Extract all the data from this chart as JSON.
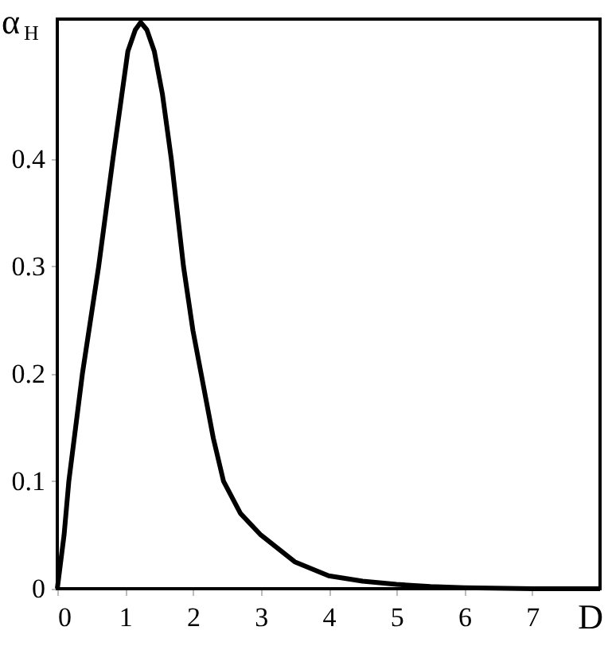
{
  "chart_data": {
    "type": "line",
    "xlabel": "D",
    "ylabel": "α$_{H}$",
    "x": [
      0,
      0.1,
      0.17,
      0.37,
      0.61,
      0.82,
      0.93,
      1.04,
      1.15,
      1.23,
      1.32,
      1.43,
      1.55,
      1.68,
      1.86,
      2.0,
      2.12,
      2.3,
      2.45,
      2.7,
      3.0,
      3.5,
      4.0,
      4.5,
      5.0,
      5.5,
      6.0,
      7.0,
      8.0
    ],
    "series": [
      {
        "color": "#000000",
        "values": [
          0,
          0.05,
          0.1,
          0.2,
          0.3,
          0.4,
          0.45,
          0.5,
          0.52,
          0.527,
          0.52,
          0.5,
          0.46,
          0.4,
          0.3,
          0.24,
          0.2,
          0.14,
          0.1,
          0.07,
          0.05,
          0.025,
          0.012,
          0.007,
          0.004,
          0.002,
          0.001,
          0.0,
          0.0
        ]
      }
    ],
    "xlim": [
      0,
      8
    ],
    "ylim": [
      0,
      0.53
    ],
    "xticks": [
      0,
      1,
      2,
      3,
      4,
      5,
      6,
      7
    ],
    "yticks": [
      0,
      0.1,
      0.2,
      0.3,
      0.4
    ],
    "grid": false,
    "line_style": "solid",
    "marker": "none"
  }
}
